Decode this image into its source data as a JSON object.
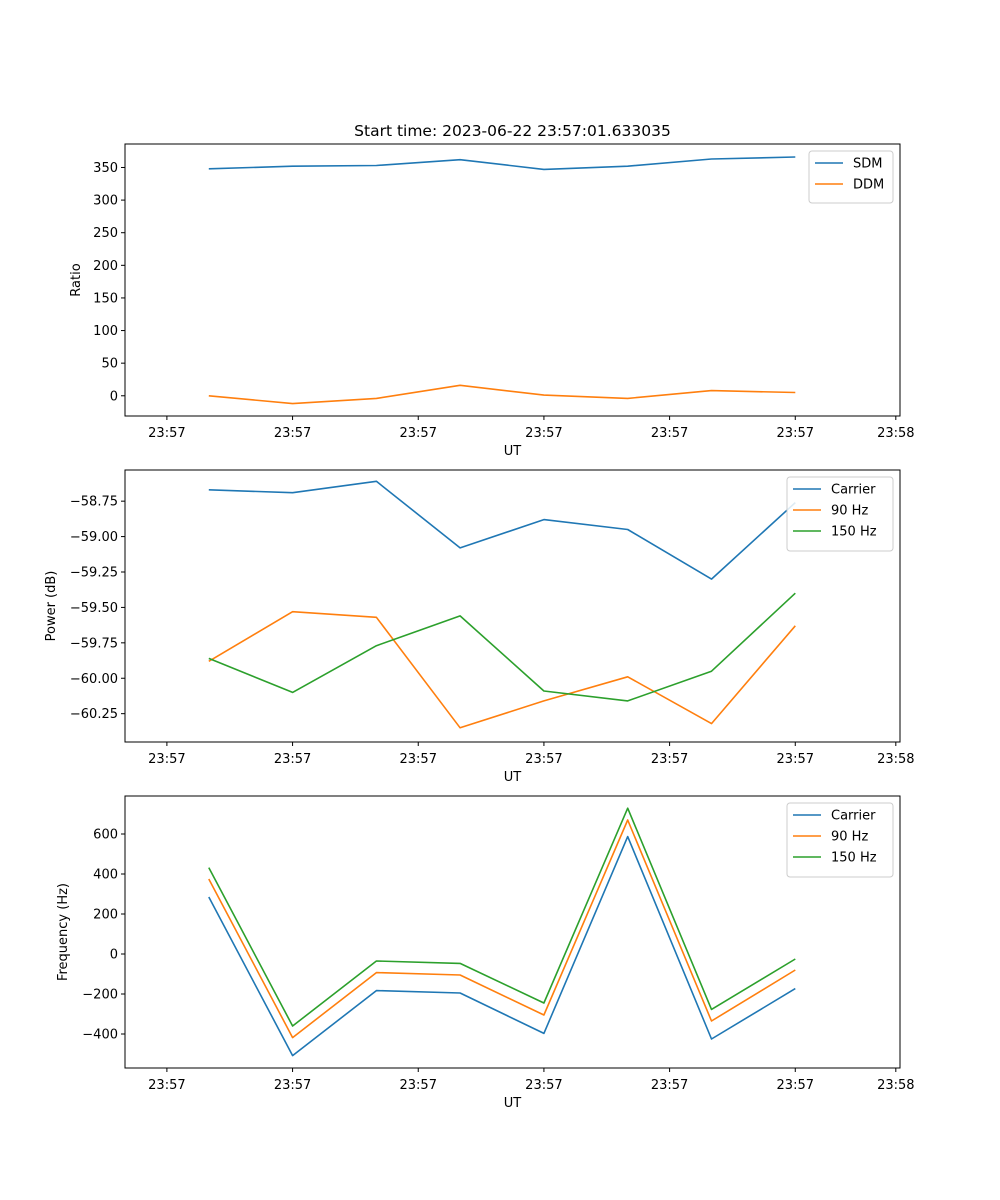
{
  "chart_data": [
    {
      "type": "line",
      "title": "Start time: 2023-06-22 23:57:01.633035",
      "xlabel": "UT",
      "ylabel": "Ratio",
      "x_ticks": [
        "23:57",
        "23:57",
        "23:57",
        "23:57",
        "23:57",
        "23:57",
        "23:58"
      ],
      "y_ticks": [
        "0",
        "50",
        "100",
        "150",
        "200",
        "250",
        "300",
        "350"
      ],
      "y_tick_values": [
        0,
        50,
        100,
        150,
        200,
        250,
        300,
        350
      ],
      "xlim": [
        0,
        9.25
      ],
      "ylim": [
        -31,
        386
      ],
      "x": [
        1,
        2,
        3,
        4,
        5,
        6,
        7,
        8
      ],
      "legend": "top-right",
      "series": [
        {
          "name": "SDM",
          "color": "#1f77b4",
          "values": [
            348,
            352,
            353,
            362,
            347,
            352,
            363,
            366
          ]
        },
        {
          "name": "DDM",
          "color": "#ff7f0e",
          "values": [
            0,
            -12,
            -4,
            16,
            1,
            -4,
            8,
            5
          ]
        }
      ]
    },
    {
      "type": "line",
      "xlabel": "UT",
      "ylabel": "Power (dB)",
      "x_ticks": [
        "23:57",
        "23:57",
        "23:57",
        "23:57",
        "23:57",
        "23:57",
        "23:58"
      ],
      "y_ticks": [
        "−58.75",
        "−59.00",
        "−59.25",
        "−59.50",
        "−59.75",
        "−60.00",
        "−60.25"
      ],
      "y_tick_values": [
        -58.75,
        -59.0,
        -59.25,
        -59.5,
        -59.75,
        -60.0,
        -60.25
      ],
      "xlim": [
        0,
        9.25
      ],
      "ylim": [
        -60.45,
        -58.53
      ],
      "x": [
        1,
        2,
        3,
        4,
        5,
        6,
        7,
        8
      ],
      "legend": "top-right",
      "series": [
        {
          "name": "Carrier",
          "color": "#1f77b4",
          "values": [
            -58.67,
            -58.69,
            -58.61,
            -59.08,
            -58.88,
            -58.95,
            -59.3,
            -58.76
          ]
        },
        {
          "name": "90 Hz",
          "color": "#ff7f0e",
          "values": [
            -59.88,
            -59.53,
            -59.57,
            -60.35,
            -60.16,
            -59.99,
            -60.32,
            -59.63
          ]
        },
        {
          "name": "150 Hz",
          "color": "#2ca02c",
          "values": [
            -59.86,
            -60.1,
            -59.77,
            -59.56,
            -60.09,
            -60.16,
            -59.95,
            -59.4
          ]
        }
      ]
    },
    {
      "type": "line",
      "xlabel": "UT",
      "ylabel": "Frequency (Hz)",
      "x_ticks": [
        "23:57",
        "23:57",
        "23:57",
        "23:57",
        "23:57",
        "23:57",
        "23:58"
      ],
      "y_ticks": [
        "−400",
        "−200",
        "0",
        "200",
        "400",
        "600"
      ],
      "y_tick_values": [
        -400,
        -200,
        0,
        200,
        400,
        600
      ],
      "xlim": [
        0,
        9.25
      ],
      "ylim": [
        -570,
        790
      ],
      "x": [
        1,
        2,
        3,
        4,
        5,
        6,
        7,
        8
      ],
      "legend": "top-right",
      "series": [
        {
          "name": "Carrier",
          "color": "#1f77b4",
          "values": [
            285,
            -508,
            -183,
            -195,
            -397,
            587,
            -425,
            -173
          ]
        },
        {
          "name": "90 Hz",
          "color": "#ff7f0e",
          "values": [
            375,
            -418,
            -93,
            -105,
            -305,
            670,
            -335,
            -80
          ]
        },
        {
          "name": "150 Hz",
          "color": "#2ca02c",
          "values": [
            432,
            -360,
            -35,
            -47,
            -245,
            729,
            -277,
            -25
          ]
        }
      ]
    }
  ]
}
